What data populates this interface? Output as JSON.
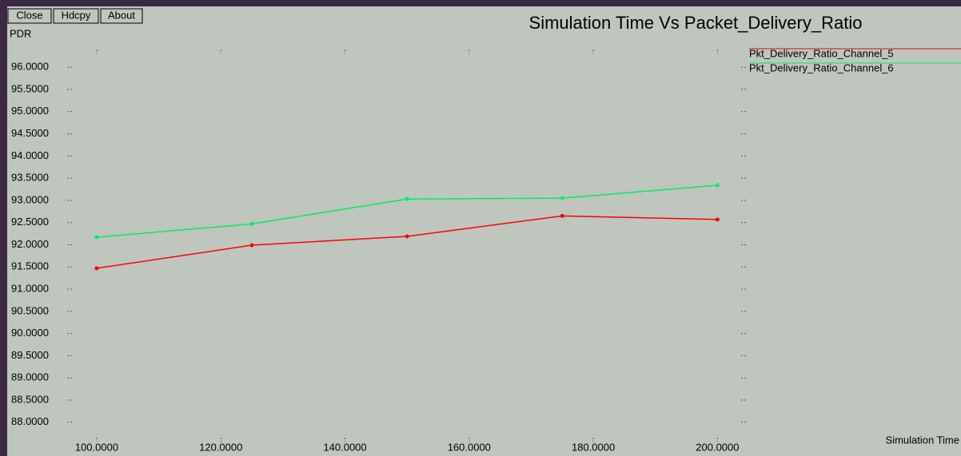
{
  "buttons": [
    "Close",
    "Hdcpy",
    "About"
  ],
  "chart_data": {
    "type": "line",
    "title": "Simulation Time Vs Packet_Delivery_Ratio",
    "y_label": "PDR",
    "x_label": "Simulation Time",
    "x": [
      100,
      125,
      150,
      175,
      200
    ],
    "series": [
      {
        "name": "Pkt_Delivery_Ratio_Channel_5",
        "color": "#ff0000",
        "values": [
          91.47,
          91.99,
          92.19,
          92.65,
          92.57
        ]
      },
      {
        "name": "Pkt_Delivery_Ratio_Channel_6",
        "color": "#00ee66",
        "values": [
          92.17,
          92.47,
          93.03,
          93.05,
          93.34
        ]
      }
    ],
    "xlim": [
      97.3,
      204.2
    ],
    "ylim": [
      87.6,
      96.4
    ],
    "xticks": [
      {
        "value": 100,
        "label": "100.0000"
      },
      {
        "value": 120,
        "label": "120.0000"
      },
      {
        "value": 140,
        "label": "140.0000"
      },
      {
        "value": 160,
        "label": "160.0000"
      },
      {
        "value": 180,
        "label": "180.0000"
      },
      {
        "value": 200,
        "label": "200.0000"
      }
    ],
    "yticks": [
      {
        "value": 88,
        "label": "88.0000"
      },
      {
        "value": 88.5,
        "label": "88.5000"
      },
      {
        "value": 89,
        "label": "89.0000"
      },
      {
        "value": 89.5,
        "label": "89.5000"
      },
      {
        "value": 90,
        "label": "90.0000"
      },
      {
        "value": 90.5,
        "label": "90.5000"
      },
      {
        "value": 91,
        "label": "91.0000"
      },
      {
        "value": 91.5,
        "label": "91.5000"
      },
      {
        "value": 92,
        "label": "92.0000"
      },
      {
        "value": 92.5,
        "label": "92.5000"
      },
      {
        "value": 93,
        "label": "93.0000"
      },
      {
        "value": 93.5,
        "label": "93.5000"
      },
      {
        "value": 94,
        "label": "94.0000"
      },
      {
        "value": 94.5,
        "label": "94.5000"
      },
      {
        "value": 95,
        "label": "95.0000"
      },
      {
        "value": 95.5,
        "label": "95.5000"
      },
      {
        "value": 96,
        "label": "96.0000"
      }
    ],
    "grid": false
  }
}
